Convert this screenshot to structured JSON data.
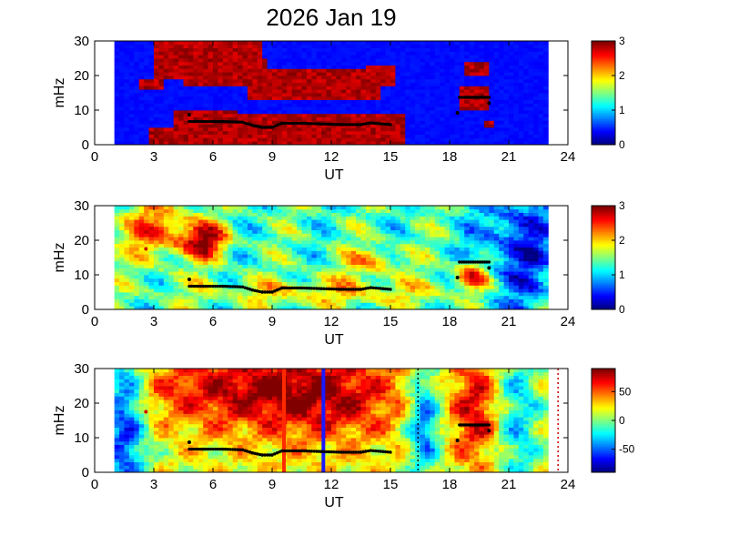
{
  "chart_data": [
    {
      "type": "heatmap",
      "title": "2026 Jan 19",
      "xlabel": "UT",
      "ylabel": "mHz",
      "xlim": [
        0,
        24
      ],
      "ylim": [
        0,
        30
      ],
      "x_ticks": [
        "0",
        "3",
        "6",
        "9",
        "12",
        "15",
        "18",
        "21",
        "24"
      ],
      "y_ticks": [
        "0",
        "10",
        "20",
        "30"
      ],
      "data_range_ut": [
        1,
        23
      ],
      "colorbar": {
        "range": [
          0,
          3
        ],
        "ticks": [
          "0",
          "1",
          "2",
          "3"
        ]
      },
      "colormap": "jet",
      "dominant_frequency_track": {
        "segment_1": {
          "ut": [
            4.8,
            5.5,
            6.5,
            7.5,
            8.0,
            8.5,
            9.0,
            9.5,
            10.5,
            11.5,
            12.5,
            13.5,
            14.0,
            15.0
          ],
          "mhz": [
            6.7,
            6.7,
            6.7,
            6.5,
            5.6,
            5.0,
            5.0,
            6.2,
            6.2,
            6.0,
            5.8,
            5.8,
            6.3,
            5.8
          ]
        },
        "segment_2": {
          "ut": [
            18.5,
            20.0
          ],
          "mhz": [
            13.7,
            13.7
          ]
        }
      }
    },
    {
      "type": "heatmap",
      "title": "",
      "xlabel": "UT",
      "ylabel": "mHz",
      "xlim": [
        0,
        24
      ],
      "ylim": [
        0,
        30
      ],
      "x_ticks": [
        "0",
        "3",
        "6",
        "9",
        "12",
        "15",
        "18",
        "21",
        "24"
      ],
      "y_ticks": [
        "0",
        "10",
        "20",
        "30"
      ],
      "data_range_ut": [
        1,
        23
      ],
      "colorbar": {
        "range": [
          0,
          3
        ],
        "ticks": [
          "0",
          "1",
          "2",
          "3"
        ]
      },
      "colormap": "jet",
      "isolated_points": [
        {
          "ut": 2.6,
          "mhz": 17.5
        },
        {
          "ut": 4.8,
          "mhz": 8.7
        },
        {
          "ut": 18.4,
          "mhz": 9.2
        },
        {
          "ut": 20.0,
          "mhz": 12.0
        }
      ]
    },
    {
      "type": "heatmap",
      "title": "",
      "xlabel": "UT",
      "ylabel": "mHz",
      "xlim": [
        0,
        24
      ],
      "ylim": [
        0,
        30
      ],
      "x_ticks": [
        "0",
        "3",
        "6",
        "9",
        "12",
        "15",
        "18",
        "21",
        "24"
      ],
      "y_ticks": [
        "0",
        "10",
        "20",
        "30"
      ],
      "data_range_ut": [
        1,
        23
      ],
      "colorbar": {
        "range": [
          -90,
          90
        ],
        "ticks": [
          "-50",
          "0",
          "50"
        ]
      },
      "colormap": "jet",
      "vertical_markers": [
        {
          "ut": 9.6,
          "color": "#ff2a00",
          "style": "solid"
        },
        {
          "ut": 11.6,
          "color": "#1a1aff",
          "style": "solid"
        },
        {
          "ut": 16.4,
          "color": "#000000",
          "style": "dotted"
        },
        {
          "ut": 23.5,
          "color": "#cc0000",
          "style": "dotted"
        }
      ]
    }
  ]
}
